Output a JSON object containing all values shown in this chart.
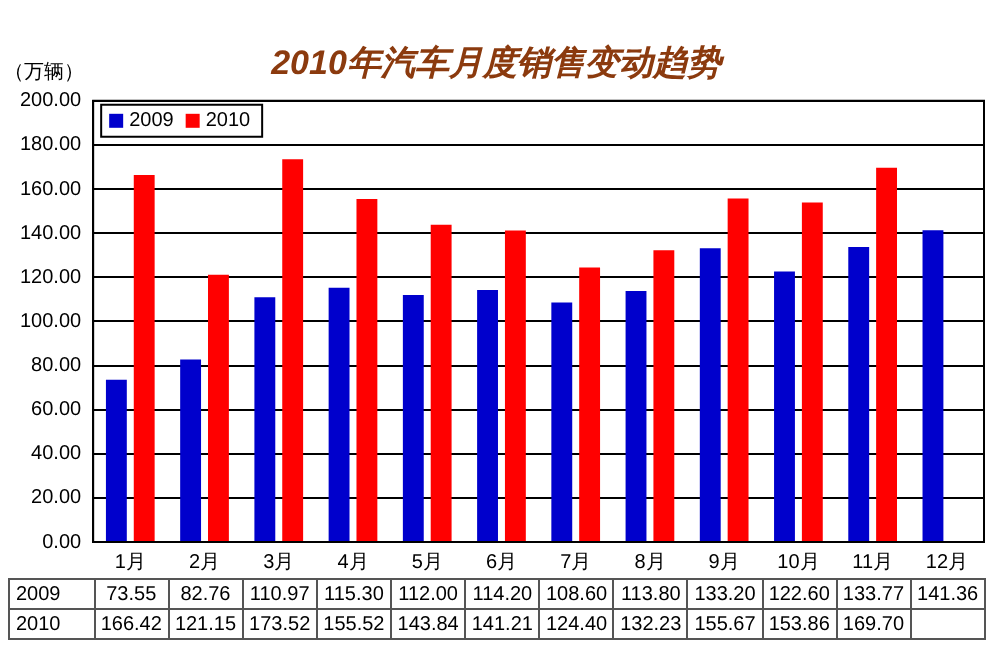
{
  "chart_data": {
    "type": "bar",
    "title": "2010年汽车月度销售变动趋势",
    "ylabel": "（万辆）",
    "categories": [
      "1月",
      "2月",
      "3月",
      "4月",
      "5月",
      "6月",
      "7月",
      "8月",
      "9月",
      "10月",
      "11月",
      "12月"
    ],
    "series": [
      {
        "name": "2009",
        "color": "#0000cc",
        "values": [
          73.55,
          82.76,
          110.97,
          115.3,
          112.0,
          114.2,
          108.6,
          113.8,
          133.2,
          122.6,
          133.77,
          141.36
        ],
        "value_labels": [
          "73.55",
          "82.76",
          "110.97",
          "115.30",
          "112.00",
          "114.20",
          "108.60",
          "113.80",
          "133.20",
          "122.60",
          "133.77",
          "141.36"
        ]
      },
      {
        "name": "2010",
        "color": "#ff0000",
        "values": [
          166.42,
          121.15,
          173.52,
          155.52,
          143.84,
          141.21,
          124.4,
          132.23,
          155.67,
          153.86,
          169.7,
          null
        ],
        "value_labels": [
          "166.42",
          "121.15",
          "173.52",
          "155.52",
          "143.84",
          "141.21",
          "124.40",
          "132.23",
          "155.67",
          "153.86",
          "169.70",
          null
        ]
      }
    ],
    "ylim": [
      0,
      200
    ],
    "yticks": [
      {
        "value": 0,
        "label": "0.00"
      },
      {
        "value": 20,
        "label": "20.00"
      },
      {
        "value": 40,
        "label": "40.00"
      },
      {
        "value": 60,
        "label": "60.00"
      },
      {
        "value": 80,
        "label": "80.00"
      },
      {
        "value": 100,
        "label": "100.00"
      },
      {
        "value": 120,
        "label": "120.00"
      },
      {
        "value": 140,
        "label": "140.00"
      },
      {
        "value": 160,
        "label": "160.00"
      },
      {
        "value": 180,
        "label": "180.00"
      },
      {
        "value": 200,
        "label": "200.00"
      }
    ],
    "grid": "y",
    "legend": "top left"
  }
}
